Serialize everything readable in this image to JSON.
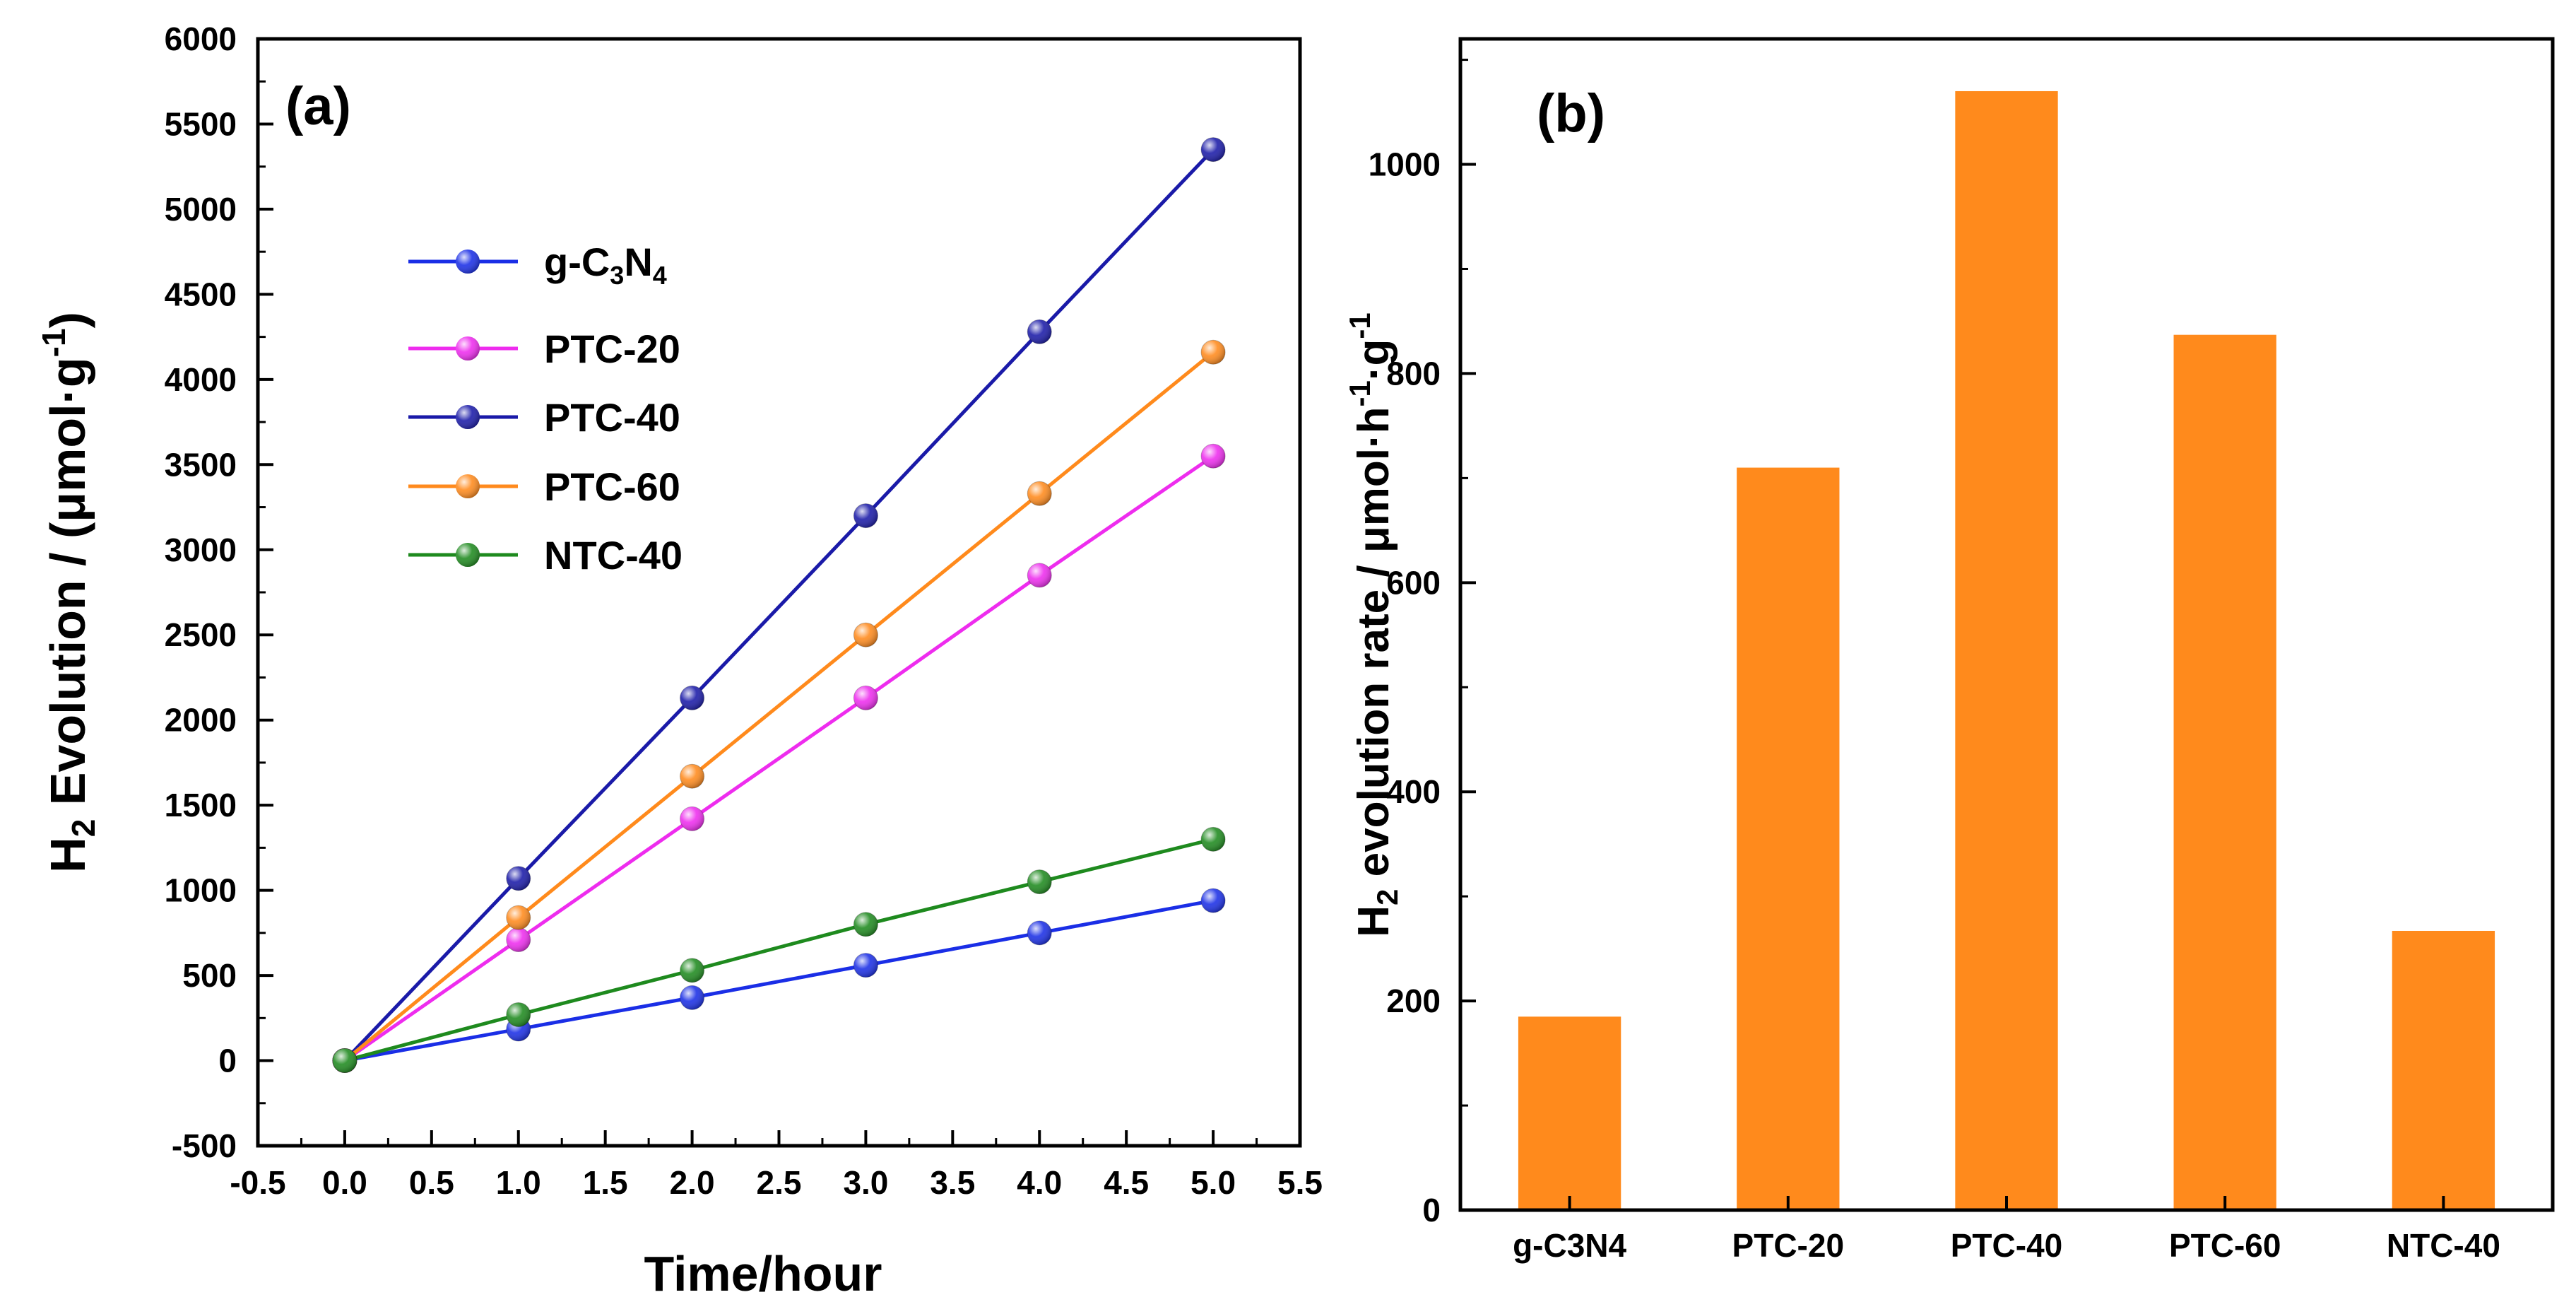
{
  "figure": {
    "background": "#ffffff"
  },
  "chart_data": [
    {
      "type": "line",
      "panel_label": "(a)",
      "xlabel": "Time/hour",
      "ylabel": {
        "base": "H",
        "sub": "2",
        "rest": " Evolution / (μmol·g",
        "sup": "-1",
        "close": ")"
      },
      "xlim": [
        -0.5,
        5.5
      ],
      "ylim": [
        -500,
        6000
      ],
      "x_ticks": [
        -0.5,
        0.0,
        0.5,
        1.0,
        1.5,
        2.0,
        2.5,
        3.0,
        3.5,
        4.0,
        4.5,
        5.0,
        5.5
      ],
      "x_tick_labels": [
        "-0.5",
        "0.0",
        "0.5",
        "1.0",
        "1.5",
        "2.0",
        "2.5",
        "3.0",
        "3.5",
        "4.0",
        "4.5",
        "5.0",
        "5.5"
      ],
      "y_ticks": [
        -500,
        0,
        500,
        1000,
        1500,
        2000,
        2500,
        3000,
        3500,
        4000,
        4500,
        5000,
        5500,
        6000
      ],
      "y_tick_labels": [
        "-500",
        "0",
        "500",
        "1000",
        "1500",
        "2000",
        "2500",
        "3000",
        "3500",
        "4000",
        "4500",
        "5000",
        "5500",
        "6000"
      ],
      "legend_position": "upper-left",
      "series": [
        {
          "name": "g-C3N4",
          "label": {
            "base": "g-C",
            "sub1": "3",
            "mid": "N",
            "sub2": "4"
          },
          "color": "#1a2ee6",
          "x": [
            0,
            1,
            2,
            3,
            4,
            5
          ],
          "values": [
            0,
            185,
            370,
            560,
            750,
            940
          ]
        },
        {
          "name": "PTC-20",
          "label": "PTC-20",
          "color": "#ee2cee",
          "x": [
            0,
            1,
            2,
            3,
            4,
            5
          ],
          "values": [
            0,
            710,
            1420,
            2130,
            2850,
            3550
          ]
        },
        {
          "name": "PTC-40",
          "label": "PTC-40",
          "color": "#1a1aa8",
          "x": [
            0,
            1,
            2,
            3,
            4,
            5
          ],
          "values": [
            0,
            1070,
            2130,
            3200,
            4280,
            5350
          ]
        },
        {
          "name": "PTC-60",
          "label": "PTC-60",
          "color": "#ff8a1c",
          "x": [
            0,
            1,
            2,
            3,
            4,
            5
          ],
          "values": [
            0,
            840,
            1670,
            2500,
            3330,
            4160
          ]
        },
        {
          "name": "NTC-40",
          "label": "NTC-40",
          "color": "#1e8a1e",
          "x": [
            0,
            1,
            2,
            3,
            4,
            5
          ],
          "values": [
            0,
            270,
            530,
            800,
            1050,
            1300
          ]
        }
      ]
    },
    {
      "type": "bar",
      "panel_label": "(b)",
      "xlabel": "",
      "ylabel": {
        "base": "H",
        "sub": "2",
        "rest": " evolution rate / μmol·h",
        "sup1": "-1",
        "mid": "·g",
        "sup2": "-1"
      },
      "ylim": [
        0,
        1120
      ],
      "y_ticks": [
        0,
        200,
        400,
        600,
        800,
        1000
      ],
      "y_tick_labels": [
        "0",
        "200",
        "400",
        "600",
        "800",
        "1000"
      ],
      "categories": [
        "g-C3N4",
        "PTC-20",
        "PTC-40",
        "PTC-60",
        "NTC-40"
      ],
      "values": [
        185,
        710,
        1070,
        837,
        267
      ],
      "bar_color": "#ff8a1c"
    }
  ]
}
